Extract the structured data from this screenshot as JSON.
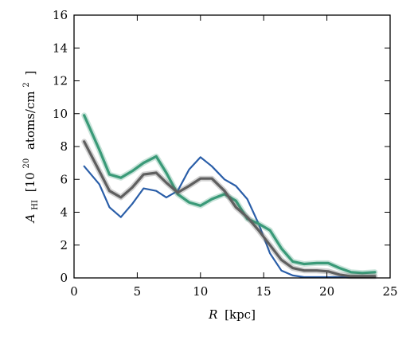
{
  "chart_data": {
    "type": "line",
    "title": "",
    "xlabel": "R [kpc]",
    "ylabel": "A_HI [10^20 atoms/cm^2 ]",
    "xlabel_parts": {
      "var": "R",
      "unit": "[kpc]"
    },
    "ylabel_parts": {
      "var": "A",
      "sub": "HI",
      "bracket_open": "[10",
      "exp": "20",
      "unit": "atoms/cm",
      "unit_exp": "2",
      "bracket_close": "]"
    },
    "xlim": [
      0,
      25
    ],
    "ylim": [
      0,
      16
    ],
    "xticks": [
      0,
      5,
      10,
      15,
      20,
      25
    ],
    "yticks": [
      0,
      2,
      4,
      6,
      8,
      10,
      12,
      14,
      16
    ],
    "x": [
      0.8,
      2.0,
      2.8,
      3.7,
      4.6,
      5.5,
      6.5,
      7.3,
      8.2,
      9.1,
      10.0,
      10.9,
      11.9,
      12.8,
      13.7,
      14.6,
      15.5,
      16.4,
      17.3,
      18.2,
      19.2,
      20.1,
      21.0,
      21.9,
      22.8,
      23.8
    ],
    "series": [
      {
        "color": "#2a5ea8",
        "values": [
          6.8,
          5.7,
          4.3,
          3.7,
          4.5,
          5.45,
          5.3,
          4.9,
          5.3,
          6.6,
          7.35,
          6.8,
          6.0,
          5.6,
          4.8,
          3.3,
          1.5,
          0.45,
          0.15,
          0.05,
          0.05,
          0.05,
          0.05,
          0.05,
          0.05,
          0.05
        ]
      },
      {
        "color": "#3a9a78",
        "values": [
          9.9,
          7.8,
          6.3,
          6.1,
          6.5,
          7.0,
          7.4,
          6.4,
          5.1,
          4.6,
          4.4,
          4.8,
          5.1,
          4.7,
          3.6,
          3.3,
          2.9,
          1.8,
          1.0,
          0.85,
          0.9,
          0.9,
          0.6,
          0.35,
          0.3,
          0.35
        ]
      },
      {
        "color": "#5f5f5f",
        "values": [
          8.3,
          6.5,
          5.3,
          4.9,
          5.5,
          6.3,
          6.4,
          5.8,
          5.2,
          5.6,
          6.05,
          6.05,
          5.3,
          4.3,
          3.7,
          2.9,
          2.0,
          1.1,
          0.6,
          0.45,
          0.45,
          0.4,
          0.2,
          0.1,
          0.1,
          0.1
        ]
      }
    ]
  }
}
